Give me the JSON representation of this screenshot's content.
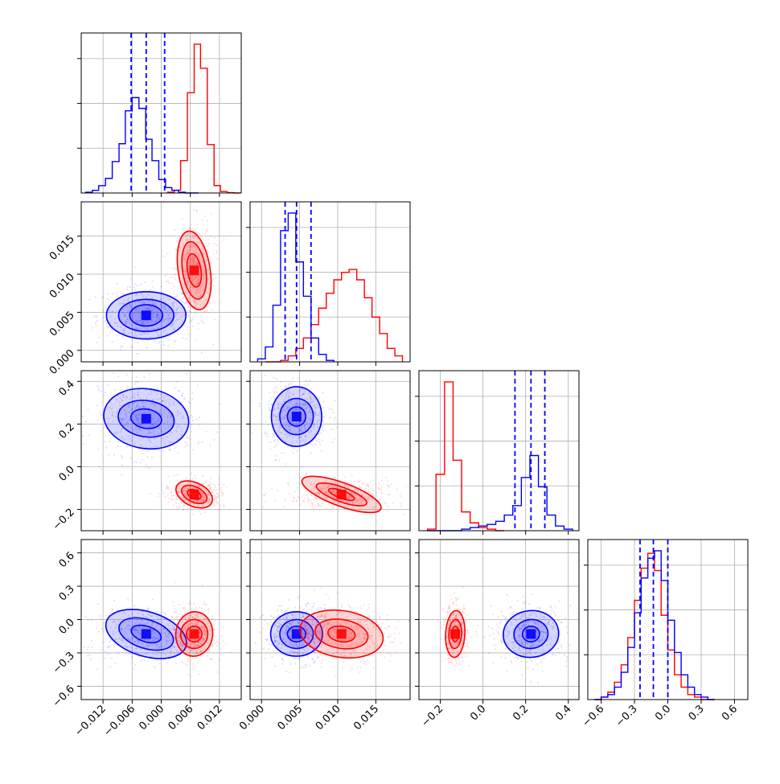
{
  "chart_data": {
    "type": "corner",
    "colors": {
      "series_a": "#0000ff",
      "series_b": "#ff0000",
      "grid": "#b0b0b0",
      "frame": "#000000"
    },
    "grid": true,
    "series": [
      {
        "name": ""
      },
      {
        "name": ""
      }
    ],
    "params": [
      {
        "range": [
          -0.0165,
          0.0165
        ],
        "ticks": [
          -0.012,
          -0.006,
          0.0,
          0.006,
          0.012
        ],
        "tick_labels": [
          "−0.012",
          "−0.006",
          "0.000",
          "0.006",
          "0.012"
        ],
        "quantiles": [
          -0.0062,
          -0.0031,
          0.0007
        ],
        "blue_hist": {
          "bins": [
            -0.0156,
            -0.0142,
            -0.0129,
            -0.0115,
            -0.0101,
            -0.0087,
            -0.0074,
            -0.006,
            -0.0046,
            -0.0032,
            -0.0019,
            -0.0005,
            0.0009,
            0.0022,
            0.0036,
            0.005,
            0.0063,
            0.0077
          ],
          "counts": [
            0.005,
            0.018,
            0.049,
            0.098,
            0.211,
            0.331,
            0.552,
            0.641,
            0.568,
            0.361,
            0.217,
            0.09,
            0.036,
            0.018,
            0.005,
            0.0,
            0.0
          ]
        },
        "red_hist": {
          "bins": [
            0.0013,
            0.0027,
            0.004,
            0.0054,
            0.0068,
            0.0081,
            0.0095,
            0.0109,
            0.0122,
            0.0136,
            0.015,
            0.0163
          ],
          "counts": [
            0.005,
            0.019,
            0.218,
            0.674,
            1.0,
            0.838,
            0.325,
            0.05,
            0.01,
            0.002,
            0.0
          ]
        }
      },
      {
        "range": [
          -0.0015,
          0.0195
        ],
        "ticks": [
          0.0,
          0.005,
          0.01,
          0.015
        ],
        "tick_labels": [
          "0.000",
          "0.005",
          "0.010",
          "0.015"
        ],
        "quantiles": [
          0.0031,
          0.0046,
          0.0065
        ],
        "blue_hist": {
          "bins": [
            -0.0005,
            0.0005,
            0.0015,
            0.0025,
            0.0035,
            0.0045,
            0.0055,
            0.0065,
            0.0075,
            0.0085,
            0.0095
          ],
          "counts": [
            0.02,
            0.1,
            0.38,
            0.88,
            0.998,
            0.67,
            0.44,
            0.16,
            0.05,
            0.01
          ]
        },
        "red_hist": {
          "bins": [
            0.0005,
            0.0015,
            0.0025,
            0.0035,
            0.0045,
            0.0055,
            0.0065,
            0.0075,
            0.0085,
            0.0095,
            0.0105,
            0.0115,
            0.0125,
            0.0135,
            0.0145,
            0.0155,
            0.0165,
            0.0175,
            0.0185
          ],
          "counts": [
            0.0,
            0.0,
            0.01,
            0.04,
            0.09,
            0.16,
            0.25,
            0.36,
            0.46,
            0.55,
            0.6,
            0.62,
            0.55,
            0.43,
            0.3,
            0.19,
            0.09,
            0.04
          ]
        }
      },
      {
        "range": [
          -0.3,
          0.45
        ],
        "ticks": [
          -0.2,
          0.0,
          0.2,
          0.4
        ],
        "tick_labels": [
          "−0.2",
          "0.0",
          "0.2",
          "0.4"
        ],
        "quantiles": [
          0.15,
          0.225,
          0.29
        ],
        "blue_hist": {
          "bins": [
            -0.26,
            -0.22,
            -0.18,
            -0.14,
            -0.1,
            -0.06,
            -0.02,
            0.02,
            0.06,
            0.1,
            0.14,
            0.18,
            0.22,
            0.26,
            0.3,
            0.34,
            0.38,
            0.42
          ],
          "counts": [
            0.0,
            0.0,
            0.0,
            0.0,
            0.01,
            0.02,
            0.03,
            0.04,
            0.06,
            0.1,
            0.16,
            0.34,
            0.48,
            0.28,
            0.1,
            0.03,
            0.01
          ]
        },
        "red_hist": {
          "bins": [
            -0.26,
            -0.22,
            -0.18,
            -0.14,
            -0.1,
            -0.06,
            -0.02,
            0.02,
            0.06,
            0.1
          ],
          "counts": [
            0.01,
            0.36,
            0.95,
            0.45,
            0.12,
            0.05,
            0.02,
            0.01,
            0.0
          ]
        }
      },
      {
        "range": [
          -0.72,
          0.72
        ],
        "ticks": [
          -0.6,
          -0.3,
          0.0,
          0.3,
          0.6
        ],
        "tick_labels": [
          "−0.6",
          "−0.3",
          "0.0",
          "0.3",
          "0.6"
        ],
        "quantiles": [
          -0.25,
          -0.13,
          0.0
        ],
        "blue_hist": {
          "bins": [
            -0.66,
            -0.6,
            -0.54,
            -0.48,
            -0.42,
            -0.36,
            -0.3,
            -0.24,
            -0.18,
            -0.12,
            -0.06,
            0.0,
            0.06,
            0.12,
            0.18,
            0.24,
            0.3,
            0.36,
            0.42
          ],
          "counts": [
            0.0,
            0.01,
            0.02,
            0.05,
            0.11,
            0.21,
            0.35,
            0.49,
            0.57,
            0.6,
            0.48,
            0.32,
            0.19,
            0.1,
            0.05,
            0.02,
            0.01,
            0.0
          ]
        },
        "red_hist": {
          "bins": [
            -0.66,
            -0.6,
            -0.54,
            -0.48,
            -0.42,
            -0.36,
            -0.3,
            -0.24,
            -0.18,
            -0.12,
            -0.06,
            0.0,
            0.06,
            0.12,
            0.18,
            0.24,
            0.3,
            0.36,
            0.42
          ],
          "counts": [
            0.0,
            0.01,
            0.03,
            0.07,
            0.14,
            0.25,
            0.4,
            0.53,
            0.59,
            0.52,
            0.34,
            0.2,
            0.1,
            0.05,
            0.02,
            0.01,
            0.0,
            0.0
          ]
        }
      }
    ],
    "contour_pairs": [
      {
        "x": 0,
        "y": 1,
        "blue": {
          "center": [
            -0.0031,
            0.0046
          ],
          "levels": [
            [
              0.0034,
              0.0014
            ],
            [
              0.0057,
              0.0021
            ],
            [
              0.0082,
              0.0031
            ]
          ],
          "tilt": 0.0
        },
        "red": {
          "center": [
            0.0068,
            0.0105
          ],
          "levels": [
            [
              0.0014,
              0.0022
            ],
            [
              0.0024,
              0.0038
            ],
            [
              0.0033,
              0.0052
            ]
          ],
          "tilt": 0.15
        }
      },
      {
        "x": 0,
        "y": 2,
        "blue": {
          "center": [
            -0.0031,
            0.225
          ],
          "levels": [
            [
              0.0032,
              0.045
            ],
            [
              0.0058,
              0.085
            ],
            [
              0.0088,
              0.14
            ]
          ],
          "tilt": -0.15
        },
        "red": {
          "center": [
            0.0068,
            -0.13
          ],
          "levels": [
            [
              0.0015,
              0.02
            ],
            [
              0.0028,
              0.036
            ],
            [
              0.004,
              0.055
            ]
          ],
          "tilt": -0.45
        }
      },
      {
        "x": 0,
        "y": 3,
        "blue": {
          "center": [
            -0.0031,
            -0.13
          ],
          "levels": [
            [
              0.0032,
              0.07
            ],
            [
              0.0058,
              0.13
            ],
            [
              0.0086,
              0.2
            ]
          ],
          "tilt": -0.3
        },
        "red": {
          "center": [
            0.0068,
            -0.13
          ],
          "levels": [
            [
              0.0016,
              0.07
            ],
            [
              0.0028,
              0.13
            ],
            [
              0.0038,
              0.2
            ]
          ],
          "tilt": -0.1
        }
      },
      {
        "x": 1,
        "y": 2,
        "blue": {
          "center": [
            0.0046,
            0.235
          ],
          "levels": [
            [
              0.0012,
              0.045
            ],
            [
              0.0022,
              0.085
            ],
            [
              0.0033,
              0.14
            ]
          ],
          "tilt": 0.0
        },
        "red": {
          "center": [
            0.0105,
            -0.13
          ],
          "levels": [
            [
              0.0018,
              0.018
            ],
            [
              0.0035,
              0.034
            ],
            [
              0.0055,
              0.055
            ]
          ],
          "tilt": -0.35
        }
      },
      {
        "x": 1,
        "y": 3,
        "blue": {
          "center": [
            0.0046,
            -0.13
          ],
          "levels": [
            [
              0.0012,
              0.07
            ],
            [
              0.0022,
              0.13
            ],
            [
              0.0034,
              0.2
            ]
          ],
          "tilt": 0.0
        },
        "red": {
          "center": [
            0.0105,
            -0.13
          ],
          "levels": [
            [
              0.0018,
              0.07
            ],
            [
              0.0035,
              0.13
            ],
            [
              0.0055,
              0.21
            ]
          ],
          "tilt": -0.15
        }
      },
      {
        "x": 2,
        "y": 3,
        "blue": {
          "center": [
            0.225,
            -0.13
          ],
          "levels": [
            [
              0.04,
              0.07
            ],
            [
              0.08,
              0.13
            ],
            [
              0.13,
              0.21
            ]
          ],
          "tilt": 0.1
        },
        "red": {
          "center": [
            -0.13,
            -0.13
          ],
          "levels": [
            [
              0.016,
              0.07
            ],
            [
              0.03,
              0.13
            ],
            [
              0.045,
              0.21
            ]
          ],
          "tilt": -0.05
        }
      }
    ]
  }
}
